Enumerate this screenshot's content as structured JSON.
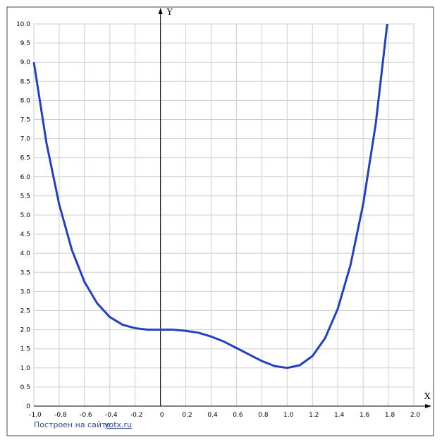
{
  "chart_data": {
    "type": "line",
    "x_label": "X",
    "y_label": "Y",
    "footer": "Построен на сайте",
    "footer_link": "yotx.ru",
    "xlim": [
      -1,
      2
    ],
    "ylim": [
      0,
      10
    ],
    "xticks": [
      {
        "value": -1,
        "label": "-1.0"
      },
      -0.8,
      -0.6,
      -0.4,
      -0.2,
      0,
      0.2,
      0.4,
      0.6,
      0.8,
      {
        "value": 1,
        "label": "1.0"
      },
      1.2,
      1.4,
      1.6,
      1.8,
      {
        "value": 2,
        "label": "2.0"
      }
    ],
    "yticks": [
      0,
      0.5,
      {
        "value": 1,
        "label": "1.0"
      },
      1.5,
      {
        "value": 2,
        "label": "2.0"
      },
      2.5,
      {
        "value": 3,
        "label": "3.0"
      },
      3.5,
      {
        "value": 4,
        "label": "4.0"
      },
      4.5,
      {
        "value": 5,
        "label": "5.0"
      },
      5.5,
      {
        "value": 6,
        "label": "6.0"
      },
      6.5,
      {
        "value": 7,
        "label": "7.0"
      },
      7.5,
      {
        "value": 8,
        "label": "8.0"
      },
      8.5,
      {
        "value": 9,
        "label": "9.0"
      },
      9.5,
      {
        "value": 10,
        "label": "10.0"
      }
    ],
    "grid": true,
    "x": [
      -1,
      -0.9,
      -0.8,
      -0.7,
      -0.6,
      -0.5,
      -0.4,
      -0.3,
      -0.2,
      -0.1,
      0,
      0.1,
      0.2,
      0.3,
      0.4,
      0.5,
      0.6,
      0.7,
      0.8,
      0.9,
      1,
      1.1,
      1.2,
      1.3,
      1.4,
      1.5,
      1.6,
      1.7,
      1.79
    ],
    "series": [
      {
        "color": "#2340c0",
        "values": [
          9,
          6.88,
          5.28,
          4.09,
          3.25,
          2.69,
          2.33,
          2.13,
          2.04,
          2.0,
          2,
          2.0,
          1.97,
          1.92,
          1.82,
          1.69,
          1.52,
          1.35,
          1.18,
          1.05,
          1,
          1.07,
          1.31,
          1.78,
          2.55,
          3.69,
          5.28,
          7.4,
          10
        ]
      }
    ]
  }
}
